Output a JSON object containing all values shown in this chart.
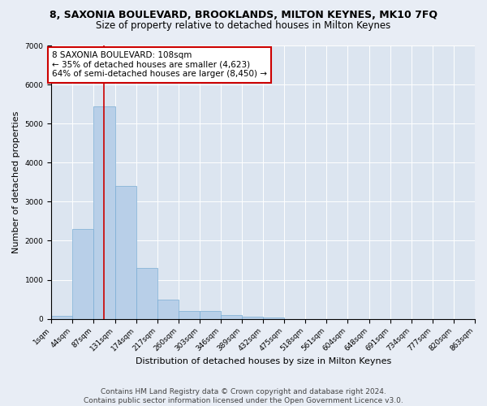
{
  "title": "8, SAXONIA BOULEVARD, BROOKLANDS, MILTON KEYNES, MK10 7FQ",
  "subtitle": "Size of property relative to detached houses in Milton Keynes",
  "xlabel": "Distribution of detached houses by size in Milton Keynes",
  "ylabel": "Number of detached properties",
  "footer_line1": "Contains HM Land Registry data © Crown copyright and database right 2024.",
  "footer_line2": "Contains public sector information licensed under the Open Government Licence v3.0.",
  "annotation_line1": "8 SAXONIA BOULEVARD: 108sqm",
  "annotation_line2": "← 35% of detached houses are smaller (4,623)",
  "annotation_line3": "64% of semi-detached houses are larger (8,450) →",
  "property_size": 108,
  "bin_edges": [
    1,
    44,
    87,
    131,
    174,
    217,
    260,
    303,
    346,
    389,
    432,
    475,
    518,
    561,
    604,
    648,
    691,
    734,
    777,
    820,
    863
  ],
  "bar_heights": [
    75,
    2300,
    5450,
    3400,
    1310,
    500,
    200,
    190,
    100,
    65,
    40,
    0,
    0,
    0,
    0,
    0,
    0,
    0,
    0,
    0
  ],
  "bar_color": "#b8cfe8",
  "bar_edge_color": "#7aadd4",
  "vline_color": "#cc0000",
  "vline_x": 108,
  "annotation_box_color": "#cc0000",
  "background_color": "#e8edf5",
  "plot_bg_color": "#dce5f0",
  "grid_color": "#ffffff",
  "ylim": [
    0,
    7000
  ],
  "yticks": [
    0,
    1000,
    2000,
    3000,
    4000,
    5000,
    6000,
    7000
  ],
  "title_fontsize": 9,
  "subtitle_fontsize": 8.5,
  "axis_label_fontsize": 8,
  "tick_fontsize": 6.5,
  "annotation_fontsize": 7.5,
  "footer_fontsize": 6.5
}
